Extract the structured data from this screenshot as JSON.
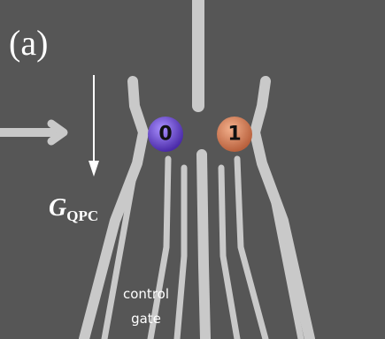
{
  "panel_label": "(a)",
  "dots": [
    {
      "label": "0"
    },
    {
      "label": "1"
    }
  ],
  "measurement": {
    "symbol": "G",
    "subscript": "QPC"
  },
  "annotation": {
    "lines": [
      "control",
      "gate"
    ]
  }
}
